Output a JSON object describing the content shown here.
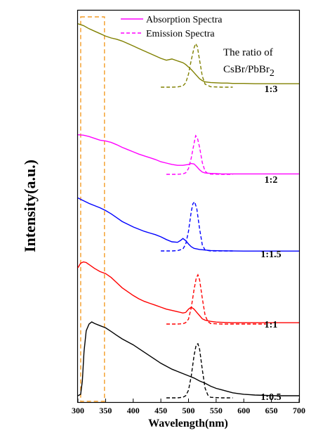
{
  "chart_data": {
    "type": "line",
    "xlabel": "Wavelength(nm)",
    "ylabel": "Intensity(a.u.)",
    "xlim": [
      300,
      700
    ],
    "xticks": [
      300,
      350,
      400,
      450,
      500,
      550,
      600,
      650,
      700
    ],
    "y_ticks_shown": false,
    "legend": {
      "placement": "top-center",
      "entries": [
        {
          "label": "Absorption Spectra",
          "style": "solid",
          "color": "#ff00ff"
        },
        {
          "label": "Emission Spectra",
          "style": "dashed",
          "color": "#ff00ff"
        }
      ]
    },
    "annotation": {
      "line1": "The ratio of",
      "line2": "CsBr/PbBr",
      "subscript": "2"
    },
    "highlight_band": {
      "x_range": [
        305,
        348
      ],
      "color": "#f39c26",
      "style": "dashed"
    },
    "series": [
      {
        "name": "1:3",
        "color": "#808000",
        "absorption": {
          "x": [
            300,
            310,
            320,
            330,
            340,
            350,
            360,
            370,
            380,
            390,
            400,
            410,
            420,
            430,
            440,
            450,
            460,
            470,
            480,
            490,
            495,
            500,
            505,
            510,
            515,
            520,
            525,
            530,
            540,
            550,
            560,
            570,
            580,
            600,
            620,
            650,
            680,
            700
          ],
          "y": [
            0.98,
            0.95,
            0.9,
            0.86,
            0.82,
            0.78,
            0.75,
            0.73,
            0.7,
            0.66,
            0.62,
            0.58,
            0.54,
            0.5,
            0.46,
            0.42,
            0.39,
            0.41,
            0.38,
            0.35,
            0.32,
            0.28,
            0.24,
            0.19,
            0.14,
            0.09,
            0.06,
            0.04,
            0.03,
            0.025,
            0.02,
            0.02,
            0.015,
            0.015,
            0.01,
            0.01,
            0.01,
            0.01
          ]
        },
        "emission": {
          "x": [
            450,
            470,
            480,
            490,
            495,
            500,
            505,
            510,
            513,
            516,
            520,
            525,
            530,
            540,
            560,
            580
          ],
          "y": [
            0,
            0,
            0.005,
            0.03,
            0.1,
            0.3,
            0.62,
            0.9,
            1.0,
            0.93,
            0.62,
            0.25,
            0.07,
            0.01,
            0,
            0
          ]
        }
      },
      {
        "name": "1:2",
        "color": "#ff00ff",
        "absorption": {
          "x": [
            300,
            310,
            320,
            330,
            340,
            350,
            360,
            370,
            380,
            390,
            400,
            410,
            420,
            430,
            440,
            450,
            460,
            470,
            480,
            490,
            500,
            505,
            510,
            515,
            520,
            525,
            530,
            540,
            550,
            560,
            580,
            600,
            650,
            700
          ],
          "y": [
            0.88,
            0.87,
            0.84,
            0.8,
            0.76,
            0.74,
            0.71,
            0.66,
            0.6,
            0.55,
            0.5,
            0.45,
            0.41,
            0.37,
            0.33,
            0.28,
            0.25,
            0.22,
            0.2,
            0.2,
            0.22,
            0.24,
            0.23,
            0.17,
            0.1,
            0.05,
            0.03,
            0.02,
            0.015,
            0.01,
            0.01,
            0.01,
            0.01,
            0.01
          ]
        },
        "emission": {
          "x": [
            460,
            480,
            490,
            495,
            500,
            505,
            510,
            513,
            516,
            520,
            525,
            530,
            535,
            540,
            560,
            580
          ],
          "y": [
            0,
            0,
            0.01,
            0.04,
            0.15,
            0.42,
            0.8,
            1.0,
            0.95,
            0.7,
            0.3,
            0.08,
            0.02,
            0.005,
            0,
            0
          ]
        }
      },
      {
        "name": "1:1.5",
        "color": "#0000ff",
        "absorption": {
          "x": [
            300,
            310,
            320,
            330,
            340,
            350,
            360,
            370,
            380,
            390,
            400,
            410,
            420,
            430,
            440,
            450,
            460,
            470,
            480,
            485,
            490,
            495,
            500,
            505,
            510,
            520,
            530,
            540,
            560,
            600,
            650,
            700
          ],
          "y": [
            0.98,
            0.93,
            0.88,
            0.84,
            0.8,
            0.75,
            0.69,
            0.62,
            0.55,
            0.5,
            0.45,
            0.41,
            0.37,
            0.34,
            0.31,
            0.27,
            0.22,
            0.18,
            0.17,
            0.2,
            0.24,
            0.2,
            0.14,
            0.09,
            0.06,
            0.04,
            0.03,
            0.02,
            0.015,
            0.01,
            0.01,
            0.01
          ]
        },
        "emission": {
          "x": [
            450,
            470,
            480,
            490,
            495,
            500,
            505,
            508,
            511,
            515,
            520,
            525,
            530,
            540,
            560,
            580
          ],
          "y": [
            0,
            0,
            0.005,
            0.04,
            0.14,
            0.4,
            0.8,
            0.96,
            1.0,
            0.86,
            0.45,
            0.12,
            0.02,
            0,
            0,
            0
          ]
        }
      },
      {
        "name": "1:1",
        "color": "#ff0000",
        "absorption": {
          "x": [
            300,
            305,
            310,
            315,
            320,
            330,
            340,
            350,
            360,
            370,
            380,
            390,
            400,
            410,
            420,
            430,
            440,
            450,
            460,
            470,
            480,
            490,
            495,
            500,
            505,
            510,
            515,
            520,
            525,
            530,
            540,
            550,
            560,
            580,
            600,
            650,
            700
          ],
          "y": [
            0.86,
            0.93,
            0.95,
            0.94,
            0.91,
            0.85,
            0.8,
            0.77,
            0.71,
            0.63,
            0.55,
            0.49,
            0.43,
            0.38,
            0.34,
            0.31,
            0.28,
            0.25,
            0.22,
            0.2,
            0.18,
            0.16,
            0.17,
            0.22,
            0.25,
            0.22,
            0.17,
            0.12,
            0.07,
            0.05,
            0.03,
            0.02,
            0.015,
            0.01,
            0.01,
            0.01,
            0.01
          ]
        },
        "emission": {
          "x": [
            460,
            480,
            490,
            495,
            500,
            505,
            510,
            514,
            517,
            520,
            525,
            530,
            535,
            540,
            560,
            580,
            600,
            640
          ],
          "y": [
            0,
            0,
            0.005,
            0.03,
            0.1,
            0.33,
            0.7,
            0.93,
            1.0,
            0.9,
            0.52,
            0.18,
            0.05,
            0.01,
            0,
            0,
            0,
            0
          ]
        }
      },
      {
        "name": "1:0.5",
        "color": "#000000",
        "absorption": {
          "x": [
            300,
            305,
            308,
            311,
            315,
            320,
            325,
            330,
            340,
            350,
            360,
            370,
            380,
            390,
            400,
            410,
            420,
            430,
            440,
            450,
            460,
            470,
            480,
            490,
            500,
            510,
            520,
            530,
            540,
            550,
            560,
            570,
            580,
            590,
            600,
            610,
            620,
            640,
            660,
            700
          ],
          "y": [
            0,
            0.02,
            0.2,
            0.6,
            0.88,
            0.97,
            1.0,
            0.98,
            0.95,
            0.92,
            0.87,
            0.82,
            0.77,
            0.73,
            0.69,
            0.64,
            0.59,
            0.54,
            0.49,
            0.44,
            0.4,
            0.36,
            0.33,
            0.3,
            0.27,
            0.24,
            0.2,
            0.17,
            0.13,
            0.1,
            0.08,
            0.06,
            0.04,
            0.03,
            0.02,
            0.015,
            0.01,
            0.005,
            0,
            0
          ]
        },
        "emission": {
          "x": [
            460,
            480,
            490,
            495,
            500,
            505,
            510,
            514,
            517,
            520,
            525,
            530,
            535,
            540,
            560,
            580
          ],
          "y": [
            0,
            0,
            0.01,
            0.04,
            0.14,
            0.4,
            0.78,
            0.98,
            1.0,
            0.9,
            0.52,
            0.18,
            0.05,
            0.01,
            0,
            0
          ]
        }
      }
    ]
  }
}
